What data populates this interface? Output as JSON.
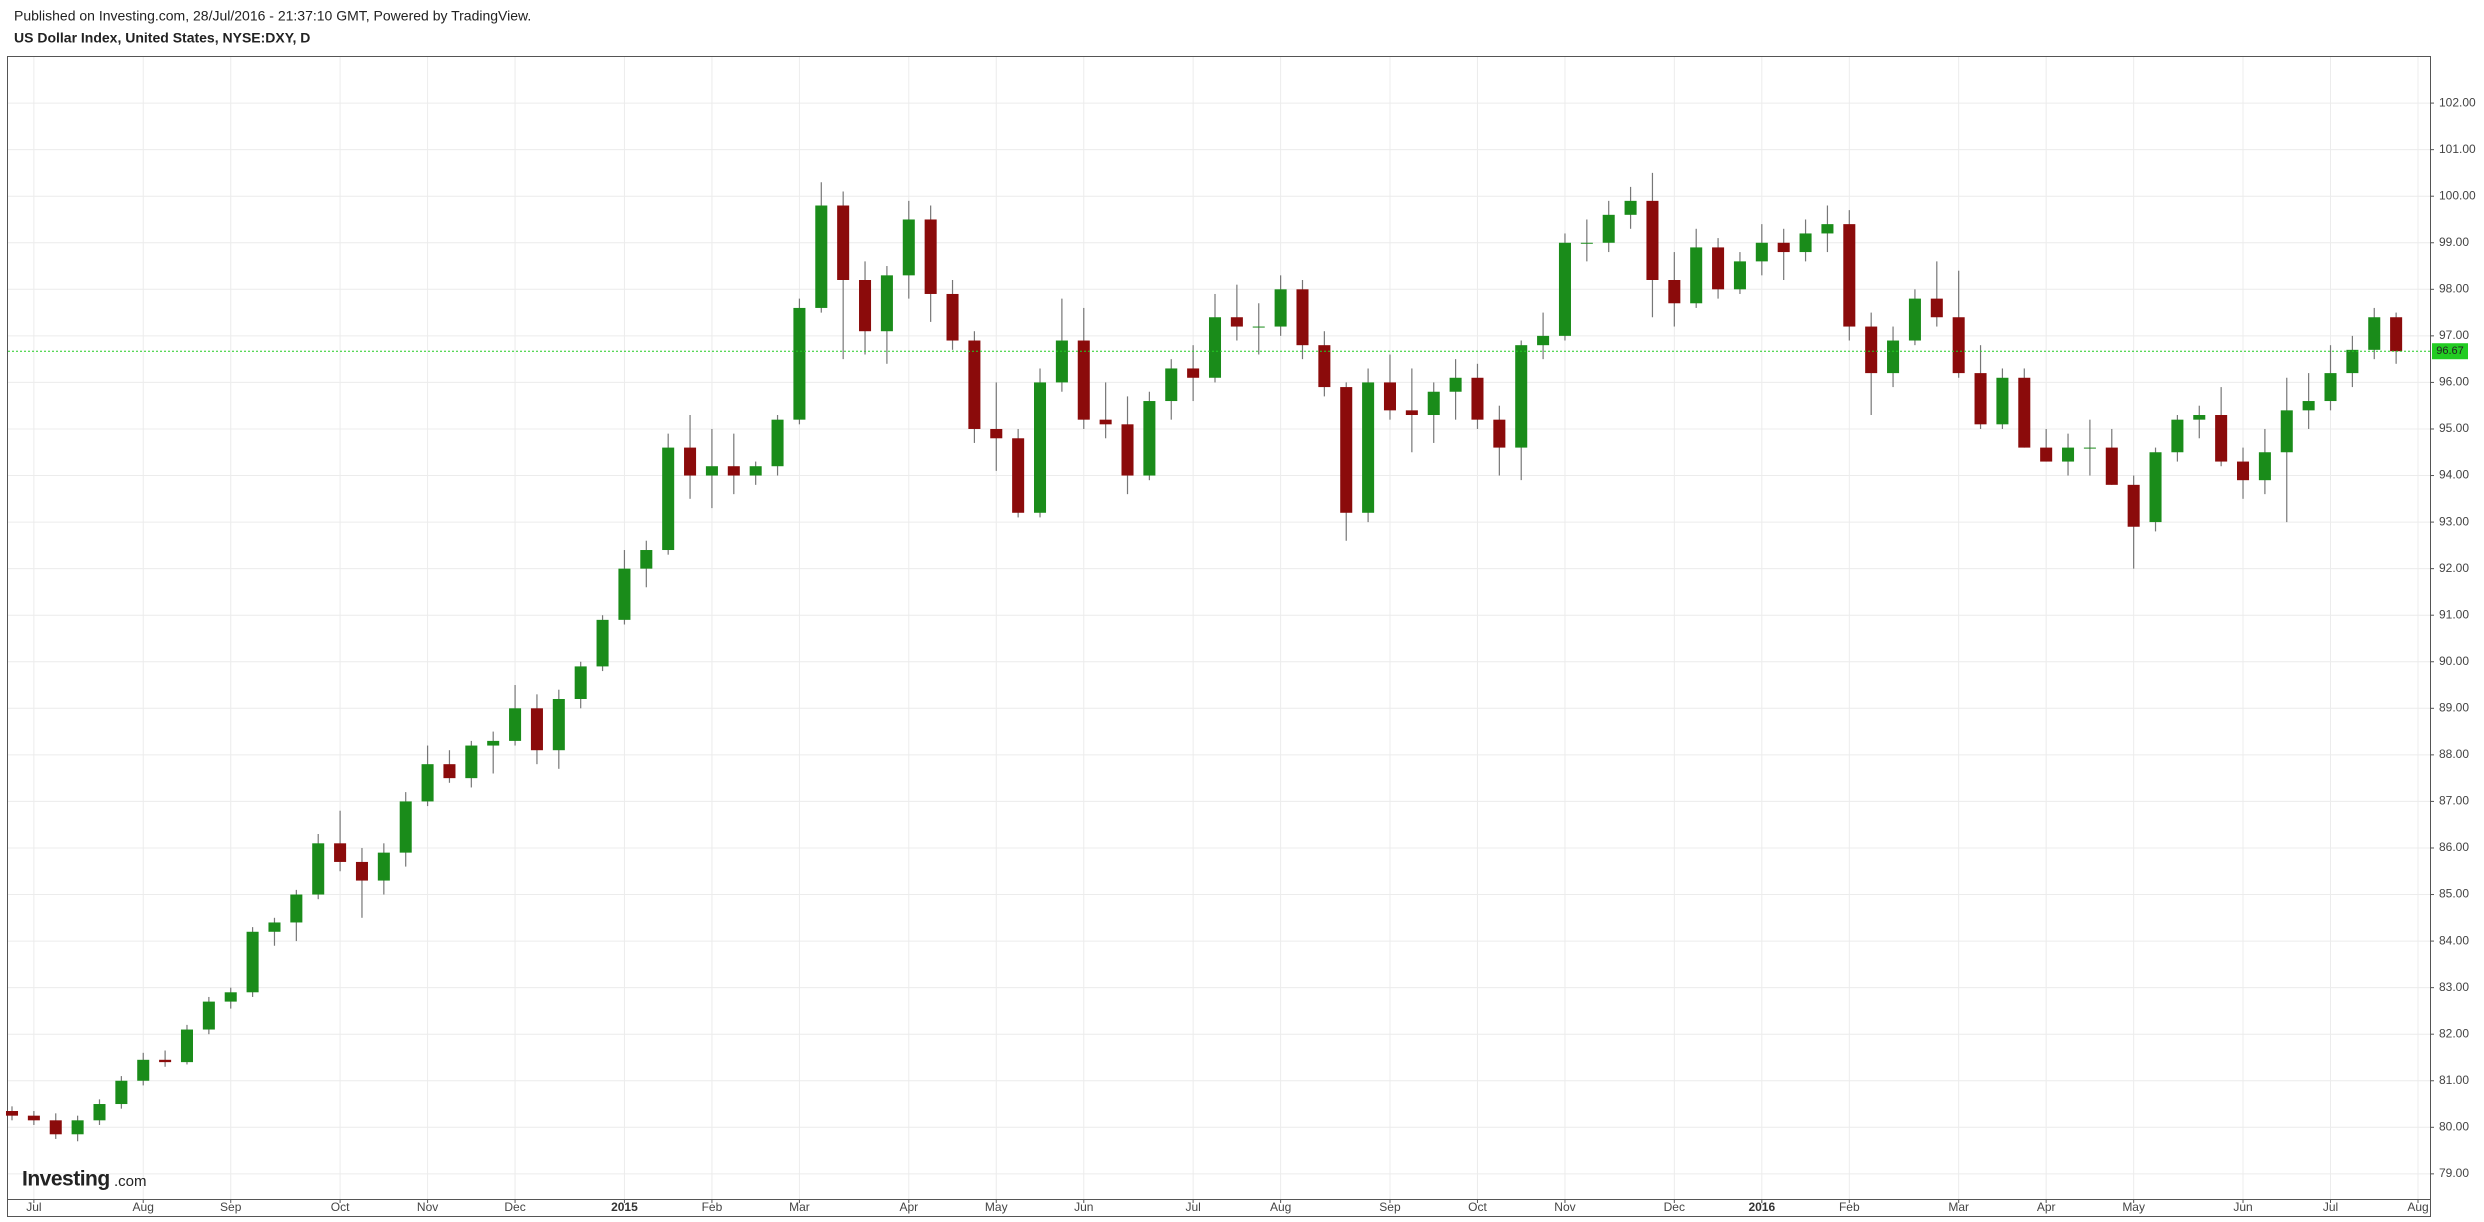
{
  "header": {
    "published": "Published on Investing.com, 28/Jul/2016 - 21:37:10 GMT, Powered by TradingView.",
    "title": "US Dollar Index, United States, NYSE:DXY, D"
  },
  "logo": {
    "main": "Investing",
    "suffix": ".com"
  },
  "chart_data": {
    "type": "candlestick",
    "categories": [
      null,
      "Jul",
      null,
      null,
      null,
      null,
      "Aug",
      null,
      null,
      null,
      "Sep",
      null,
      null,
      null,
      null,
      "Oct",
      null,
      null,
      null,
      "Nov",
      null,
      null,
      null,
      "Dec",
      null,
      null,
      null,
      null,
      "2015",
      null,
      null,
      null,
      "Feb",
      null,
      null,
      null,
      "Mar",
      null,
      null,
      null,
      null,
      "Apr",
      null,
      null,
      null,
      "May",
      null,
      null,
      null,
      "Jun",
      null,
      null,
      null,
      null,
      "Jul",
      null,
      null,
      null,
      "Aug",
      null,
      null,
      null,
      null,
      "Sep",
      null,
      null,
      null,
      "Oct",
      null,
      null,
      null,
      "Nov",
      null,
      null,
      null,
      null,
      "Dec",
      null,
      null,
      null,
      "2016",
      null,
      null,
      null,
      "Feb",
      null,
      null,
      null,
      null,
      "Mar",
      null,
      null,
      null,
      "Apr",
      null,
      null,
      null,
      "May",
      null,
      null,
      null,
      null,
      "Jun",
      null,
      null,
      null,
      "Jul",
      null,
      null,
      null,
      "Aug"
    ],
    "open": [
      80.35,
      80.25,
      80.15,
      79.85,
      80.15,
      80.5,
      81.0,
      81.45,
      81.4,
      82.1,
      82.7,
      82.9,
      84.2,
      84.4,
      85.0,
      86.1,
      85.7,
      85.3,
      85.9,
      87.0,
      87.8,
      87.5,
      88.2,
      88.3,
      89.0,
      88.1,
      89.2,
      89.9,
      90.9,
      92.0,
      92.4,
      94.6,
      94.0,
      94.2,
      94.0,
      94.2,
      95.2,
      97.6,
      99.8,
      98.2,
      97.1,
      98.3,
      99.5,
      97.9,
      96.9,
      95.0,
      94.8,
      93.2,
      96.0,
      96.9,
      95.2,
      95.1,
      94.0,
      95.6,
      96.3,
      96.1,
      97.4,
      97.2,
      97.2,
      98.0,
      96.8,
      95.9,
      93.2,
      96.0,
      95.4,
      95.3,
      95.8,
      96.1,
      95.2,
      94.6,
      96.8,
      97.0,
      99.0,
      99.0,
      99.6,
      99.9,
      98.2,
      97.7,
      98.9,
      98.0,
      98.6,
      99.0,
      98.8,
      99.2,
      99.4,
      97.2,
      96.2,
      96.9,
      97.8,
      97.4,
      96.2,
      95.1,
      96.1,
      94.6,
      94.3,
      94.6,
      94.6,
      93.8,
      93.0,
      94.5,
      95.2,
      95.3,
      94.3,
      93.9,
      94.5,
      95.4,
      95.6,
      96.2,
      96.7,
      97.4,
      null
    ],
    "high": [
      80.45,
      80.35,
      80.3,
      80.25,
      80.6,
      81.1,
      81.6,
      81.65,
      82.2,
      82.8,
      83.0,
      84.3,
      84.5,
      85.1,
      86.3,
      86.8,
      86.0,
      86.1,
      87.2,
      88.2,
      88.1,
      88.3,
      88.5,
      89.5,
      89.3,
      89.4,
      90.0,
      91.0,
      92.4,
      92.6,
      94.9,
      95.3,
      95.0,
      94.9,
      94.3,
      95.3,
      97.8,
      100.3,
      100.1,
      98.6,
      98.5,
      99.9,
      99.8,
      98.2,
      97.1,
      96.0,
      95.0,
      96.3,
      97.8,
      97.6,
      96.0,
      95.7,
      95.8,
      96.5,
      96.8,
      97.9,
      98.1,
      97.7,
      98.3,
      98.2,
      97.1,
      96.0,
      96.3,
      96.6,
      96.3,
      96.0,
      96.5,
      96.4,
      95.5,
      96.9,
      97.5,
      99.2,
      99.5,
      99.9,
      100.2,
      100.5,
      98.8,
      99.3,
      99.1,
      98.8,
      99.4,
      99.3,
      99.5,
      99.8,
      99.7,
      97.5,
      97.2,
      98.0,
      98.6,
      98.4,
      96.8,
      96.3,
      96.3,
      95.0,
      94.9,
      95.2,
      95.0,
      94.0,
      94.6,
      95.3,
      95.5,
      95.9,
      94.6,
      95.0,
      96.1,
      96.2,
      96.8,
      97.0,
      97.6,
      97.5,
      null
    ],
    "low": [
      80.15,
      80.05,
      79.75,
      79.7,
      80.05,
      80.4,
      80.9,
      81.3,
      81.35,
      82.0,
      82.55,
      82.8,
      83.9,
      84.0,
      84.9,
      85.5,
      84.5,
      85.0,
      85.6,
      86.9,
      87.4,
      87.3,
      87.6,
      88.2,
      87.8,
      87.7,
      89.0,
      89.8,
      90.8,
      91.6,
      92.3,
      93.5,
      93.3,
      93.6,
      93.8,
      94.0,
      95.1,
      97.5,
      96.5,
      96.6,
      96.4,
      97.8,
      97.3,
      96.7,
      94.7,
      94.1,
      93.1,
      93.1,
      95.8,
      95.0,
      94.8,
      93.6,
      93.9,
      95.2,
      95.6,
      96.0,
      96.9,
      96.6,
      97.0,
      96.5,
      95.7,
      92.6,
      93.0,
      95.2,
      94.5,
      94.7,
      95.2,
      95.0,
      94.0,
      93.9,
      96.5,
      96.9,
      98.6,
      98.8,
      99.3,
      97.4,
      97.2,
      97.6,
      97.8,
      97.9,
      98.3,
      98.2,
      98.6,
      98.8,
      96.9,
      95.3,
      95.9,
      96.8,
      97.2,
      96.1,
      95.0,
      95.0,
      94.6,
      94.3,
      94.0,
      94.0,
      93.8,
      92.0,
      92.8,
      94.3,
      94.8,
      94.2,
      93.5,
      93.6,
      93.0,
      95.0,
      95.4,
      95.9,
      96.5,
      96.4,
      null
    ],
    "close": [
      80.25,
      80.15,
      79.85,
      80.15,
      80.5,
      81.0,
      81.45,
      81.4,
      82.1,
      82.7,
      82.9,
      84.2,
      84.4,
      85.0,
      86.1,
      85.7,
      85.3,
      85.9,
      87.0,
      87.8,
      87.5,
      88.2,
      88.3,
      89.0,
      88.1,
      89.2,
      89.9,
      90.9,
      92.0,
      92.4,
      94.6,
      94.0,
      94.2,
      94.0,
      94.2,
      95.2,
      97.6,
      99.8,
      98.2,
      97.1,
      98.3,
      99.5,
      97.9,
      96.9,
      95.0,
      94.8,
      93.2,
      96.0,
      96.9,
      95.2,
      95.1,
      94.0,
      95.6,
      96.3,
      96.1,
      97.4,
      97.2,
      97.2,
      98.0,
      96.8,
      95.9,
      93.2,
      96.0,
      95.4,
      95.3,
      95.8,
      96.1,
      95.2,
      94.6,
      96.8,
      97.0,
      99.0,
      99.0,
      99.6,
      99.9,
      98.2,
      97.7,
      98.9,
      98.0,
      98.6,
      99.0,
      98.8,
      99.2,
      99.4,
      97.2,
      96.2,
      96.9,
      97.8,
      97.4,
      96.2,
      95.1,
      96.1,
      94.6,
      94.3,
      94.6,
      94.6,
      93.8,
      92.9,
      94.5,
      95.2,
      95.3,
      94.3,
      93.9,
      94.5,
      95.4,
      95.6,
      96.2,
      96.7,
      97.4,
      96.67,
      null
    ],
    "up_color": "#1a8c1a",
    "down_color": "#8b0b0b",
    "current_price": 96.67,
    "current_price_color": "#22cc22",
    "ylim": [
      78.46,
      102.99
    ],
    "yticks": [
      {
        "value": 79,
        "label": "79.00"
      },
      {
        "value": 80,
        "label": "80.00"
      },
      {
        "value": 81,
        "label": "81.00"
      },
      {
        "value": 82,
        "label": "82.00"
      },
      {
        "value": 83,
        "label": "83.00"
      },
      {
        "value": 84,
        "label": "84.00"
      },
      {
        "value": 85,
        "label": "85.00"
      },
      {
        "value": 86,
        "label": "86.00"
      },
      {
        "value": 87,
        "label": "87.00"
      },
      {
        "value": 88,
        "label": "88.00"
      },
      {
        "value": 89,
        "label": "89.00"
      },
      {
        "value": 90,
        "label": "90.00"
      },
      {
        "value": 91,
        "label": "91.00"
      },
      {
        "value": 92,
        "label": "92.00"
      },
      {
        "value": 93,
        "label": "93.00"
      },
      {
        "value": 94,
        "label": "94.00"
      },
      {
        "value": 95,
        "label": "95.00"
      },
      {
        "value": 96,
        "label": "96.00"
      },
      {
        "value": 97,
        "label": "97.00"
      },
      {
        "value": 98,
        "label": "98.00"
      },
      {
        "value": 99,
        "label": "99.00"
      },
      {
        "value": 100,
        "label": "100.00"
      },
      {
        "value": 101,
        "label": "101.00"
      },
      {
        "value": 102,
        "label": "102.00"
      }
    ],
    "grid": true
  }
}
